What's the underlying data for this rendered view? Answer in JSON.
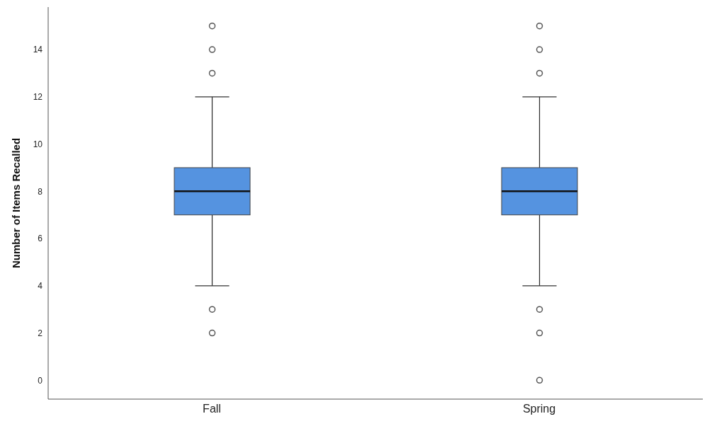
{
  "chart_data": {
    "type": "box",
    "ylabel": "Number of Items Recalled",
    "categories": [
      "Fall",
      "Spring"
    ],
    "color": "#5593e0",
    "boxes": [
      {
        "low": 4,
        "q1": 7,
        "median": 8,
        "q3": 9,
        "high": 12,
        "outliers": [
          2,
          3,
          13,
          14,
          15
        ]
      },
      {
        "low": 4,
        "q1": 7,
        "median": 8,
        "q3": 9,
        "high": 12,
        "outliers": [
          0,
          2,
          3,
          13,
          14,
          15
        ]
      }
    ],
    "ylim": [
      -0.8,
      15.8
    ],
    "yticks": [
      0,
      2,
      4,
      6,
      8,
      10,
      12,
      14
    ],
    "grid": false
  }
}
